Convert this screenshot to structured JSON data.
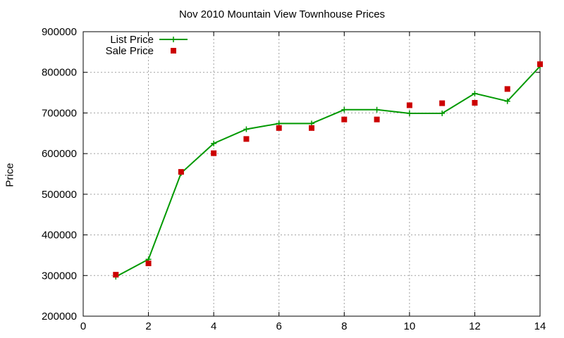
{
  "chart_data": {
    "type": "line",
    "title": "Nov 2010 Mountain View Townhouse Prices",
    "xlabel": "",
    "ylabel": "Price",
    "xlim": [
      0,
      14
    ],
    "ylim": [
      200000,
      900000
    ],
    "xticks": [
      0,
      2,
      4,
      6,
      8,
      10,
      12,
      14
    ],
    "yticks": [
      200000,
      300000,
      400000,
      500000,
      600000,
      700000,
      800000,
      900000
    ],
    "grid": true,
    "legend_position": "top-left",
    "series": [
      {
        "name": "List Price",
        "style": "line+cross",
        "color": "#009900",
        "x": [
          1,
          2,
          3,
          4,
          5,
          6,
          7,
          8,
          9,
          10,
          11,
          12,
          13,
          14
        ],
        "y": [
          297000,
          340000,
          552000,
          625000,
          660000,
          674000,
          674000,
          708000,
          708000,
          699000,
          699000,
          748000,
          729000,
          815000
        ]
      },
      {
        "name": "Sale Price",
        "style": "square-points",
        "color": "#cc0000",
        "x": [
          1,
          2,
          3,
          4,
          5,
          6,
          7,
          8,
          9,
          10,
          11,
          12,
          13,
          14
        ],
        "y": [
          302000,
          330000,
          555000,
          601000,
          636000,
          663000,
          663000,
          684000,
          684000,
          719000,
          724000,
          725000,
          759000,
          820000
        ]
      }
    ]
  }
}
